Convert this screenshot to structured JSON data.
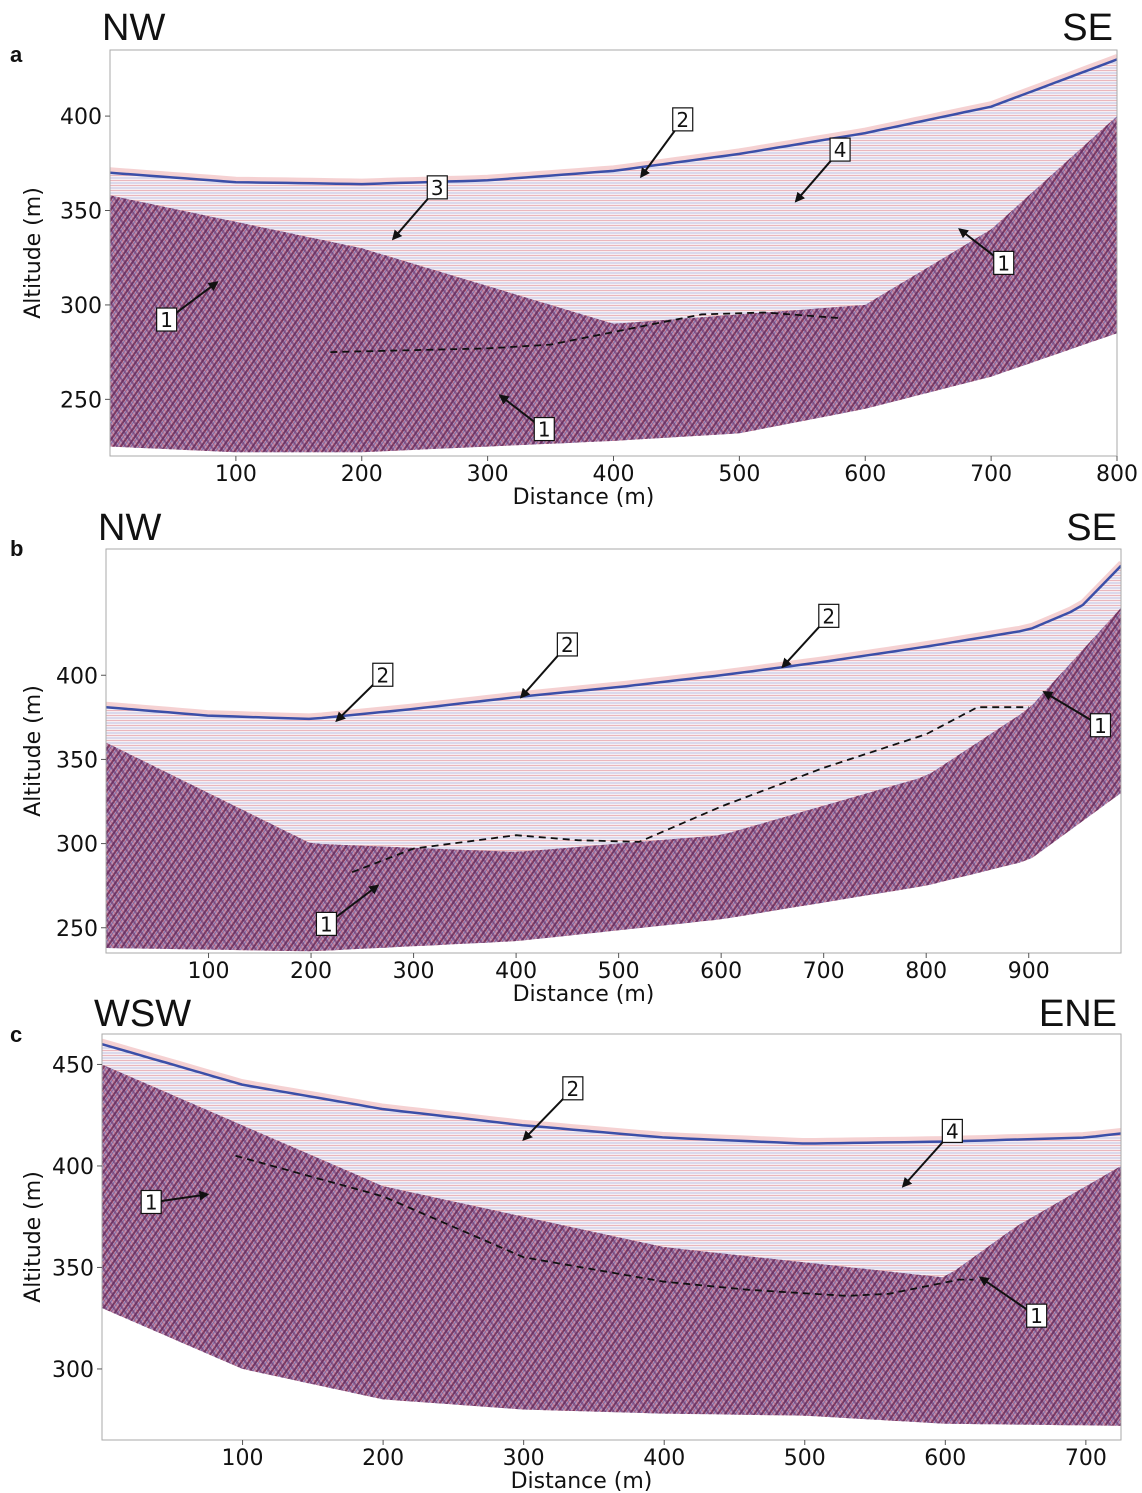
{
  "chart_data": [
    {
      "panel": "a",
      "type": "area",
      "left_direction": "NW",
      "right_direction": "SE",
      "xlabel": "Distance (m)",
      "ylabel": "Altitude (m)",
      "xlim": [
        0,
        800
      ],
      "ylim": [
        220,
        435
      ],
      "xticks": [
        100,
        200,
        300,
        400,
        500,
        600,
        700,
        800
      ],
      "yticks": [
        250,
        300,
        350,
        400
      ],
      "surface": {
        "x": [
          0,
          100,
          200,
          300,
          400,
          500,
          600,
          700,
          800
        ],
        "y": [
          370,
          365,
          364,
          366,
          371,
          380,
          391,
          405,
          430
        ]
      },
      "reflector": {
        "x": [
          0,
          200,
          400,
          600,
          700,
          800
        ],
        "y": [
          358,
          330,
          290,
          300,
          340,
          400
        ]
      },
      "base": {
        "x": [
          0,
          100,
          200,
          300,
          400,
          500,
          600,
          700,
          800
        ],
        "y": [
          225,
          222,
          222,
          225,
          228,
          232,
          245,
          262,
          285
        ]
      },
      "interpreted_boundary": {
        "x": [
          175,
          300,
          350,
          410,
          470,
          520,
          580
        ],
        "y": [
          275,
          277,
          279,
          287,
          295,
          296,
          293
        ]
      },
      "annotations": [
        {
          "label": "1",
          "x": 45,
          "y": 292,
          "ax": 85,
          "ay": 312
        },
        {
          "label": "1",
          "x": 345,
          "y": 234,
          "ax": 310,
          "ay": 252
        },
        {
          "label": "1",
          "x": 710,
          "y": 322,
          "ax": 675,
          "ay": 340
        },
        {
          "label": "2",
          "x": 455,
          "y": 398,
          "ax": 422,
          "ay": 368
        },
        {
          "label": "3",
          "x": 260,
          "y": 362,
          "ax": 225,
          "ay": 335
        },
        {
          "label": "4",
          "x": 580,
          "y": 382,
          "ax": 545,
          "ay": 355
        }
      ]
    },
    {
      "panel": "b",
      "type": "area",
      "left_direction": "NW",
      "right_direction": "SE",
      "xlabel": "Distance (m)",
      "ylabel": "Altitude (m)",
      "xlim": [
        0,
        990
      ],
      "ylim": [
        235,
        475
      ],
      "xticks": [
        100,
        200,
        300,
        400,
        500,
        600,
        700,
        800,
        900
      ],
      "yticks": [
        250,
        300,
        350,
        400
      ],
      "surface": {
        "x": [
          0,
          100,
          200,
          300,
          400,
          500,
          600,
          700,
          800,
          900,
          950,
          990
        ],
        "y": [
          381,
          376,
          374,
          380,
          387,
          393,
          400,
          408,
          417,
          427,
          440,
          465
        ]
      },
      "reflector": {
        "x": [
          0,
          200,
          400,
          600,
          800,
          900,
          990
        ],
        "y": [
          360,
          300,
          295,
          305,
          340,
          380,
          440
        ]
      },
      "base": {
        "x": [
          0,
          200,
          400,
          600,
          800,
          900,
          990
        ],
        "y": [
          238,
          236,
          242,
          255,
          275,
          290,
          330
        ]
      },
      "interpreted_boundary": {
        "x": [
          240,
          300,
          400,
          460,
          520,
          600,
          700,
          800,
          850,
          900
        ],
        "y": [
          283,
          297,
          305,
          302,
          301,
          322,
          345,
          365,
          381,
          381
        ]
      },
      "annotations": [
        {
          "label": "1",
          "x": 215,
          "y": 252,
          "ax": 265,
          "ay": 275
        },
        {
          "label": "1",
          "x": 970,
          "y": 370,
          "ax": 915,
          "ay": 390
        },
        {
          "label": "2",
          "x": 270,
          "y": 400,
          "ax": 225,
          "ay": 373
        },
        {
          "label": "2",
          "x": 450,
          "y": 418,
          "ax": 405,
          "ay": 387
        },
        {
          "label": "2",
          "x": 705,
          "y": 435,
          "ax": 660,
          "ay": 405
        }
      ]
    },
    {
      "panel": "c",
      "type": "area",
      "left_direction": "WSW",
      "right_direction": "ENE",
      "xlabel": "Distance (m)",
      "ylabel": "Altitude (m)",
      "xlim": [
        0,
        725
      ],
      "ylim": [
        265,
        465
      ],
      "xticks": [
        100,
        200,
        300,
        400,
        500,
        600,
        700
      ],
      "yticks": [
        300,
        350,
        400,
        450
      ],
      "surface": {
        "x": [
          0,
          100,
          200,
          300,
          400,
          500,
          600,
          700,
          725
        ],
        "y": [
          460,
          440,
          428,
          420,
          414,
          411,
          412,
          414,
          416
        ]
      },
      "reflector": {
        "x": [
          0,
          200,
          400,
          600,
          650,
          725
        ],
        "y": [
          450,
          390,
          360,
          345,
          370,
          400
        ]
      },
      "base": {
        "x": [
          0,
          100,
          200,
          300,
          400,
          500,
          600,
          725
        ],
        "y": [
          330,
          300,
          285,
          280,
          278,
          277,
          273,
          272
        ]
      },
      "interpreted_boundary": {
        "x": [
          95,
          200,
          300,
          400,
          460,
          530,
          560,
          610,
          620
        ],
        "y": [
          405,
          385,
          355,
          343,
          339,
          336,
          337,
          344,
          344
        ]
      },
      "annotations": [
        {
          "label": "1",
          "x": 35,
          "y": 382,
          "ax": 75,
          "ay": 386
        },
        {
          "label": "1",
          "x": 665,
          "y": 326,
          "ax": 625,
          "ay": 345
        },
        {
          "label": "2",
          "x": 335,
          "y": 438,
          "ax": 300,
          "ay": 413
        },
        {
          "label": "4",
          "x": 605,
          "y": 417,
          "ax": 570,
          "ay": 390
        }
      ]
    }
  ],
  "colors": {
    "surface": "#3b4fa8",
    "reflection": "#6b2a63",
    "blue_band": "#4a63c2",
    "red_band": "#d9484a",
    "frame": "#aaaaaa",
    "boundary": "#111111"
  }
}
